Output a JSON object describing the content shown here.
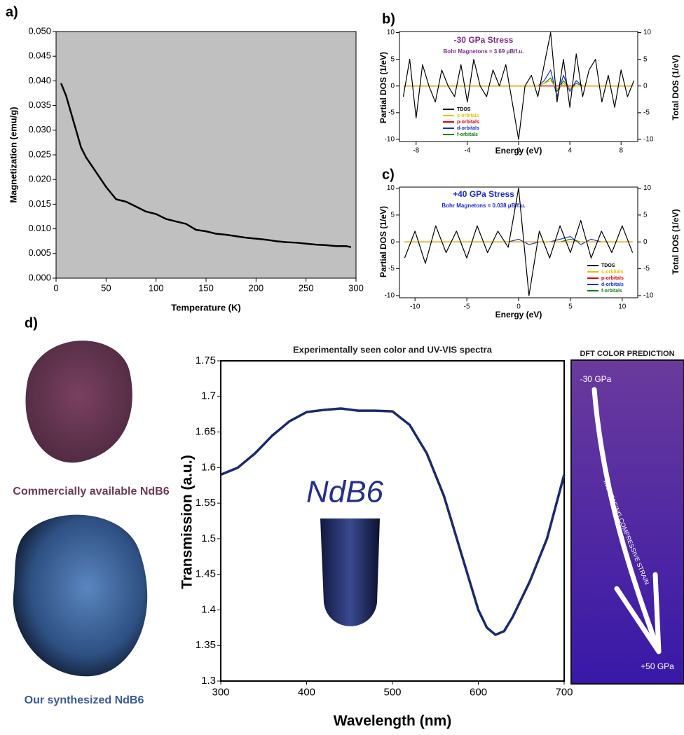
{
  "chart_data": [
    {
      "type": "line",
      "panel_label": "a)",
      "x_label": "Temperature (K)",
      "y_label": "Magnetization (emu/g)",
      "background": "#c0c0c0",
      "color": "#000000",
      "x": [
        5,
        10,
        15,
        20,
        25,
        30,
        40,
        50,
        60,
        70,
        80,
        90,
        100,
        110,
        120,
        130,
        140,
        150,
        160,
        170,
        180,
        190,
        200,
        210,
        220,
        230,
        240,
        250,
        260,
        270,
        280,
        290,
        295
      ],
      "values": [
        0.0395,
        0.037,
        0.0335,
        0.03,
        0.0265,
        0.0245,
        0.0215,
        0.0185,
        0.016,
        0.0155,
        0.0145,
        0.0135,
        0.013,
        0.012,
        0.0115,
        0.011,
        0.0098,
        0.0095,
        0.009,
        0.0088,
        0.0085,
        0.0082,
        0.008,
        0.0078,
        0.0075,
        0.0073,
        0.0072,
        0.007,
        0.0068,
        0.0067,
        0.0065,
        0.0065,
        0.0063
      ],
      "xlim": [
        0,
        300
      ],
      "xticks": [
        0,
        50,
        100,
        150,
        200,
        250,
        300
      ],
      "ylim": [
        0,
        0.05
      ],
      "yticks": [
        {
          "value": 0,
          "label": "0.000"
        },
        {
          "value": 0.005,
          "label": "0.005"
        },
        {
          "value": 0.01,
          "label": "0.010"
        },
        {
          "value": 0.015,
          "label": "0.015"
        },
        {
          "value": 0.02,
          "label": "0.020"
        },
        {
          "value": 0.025,
          "label": "0.025"
        },
        {
          "value": 0.03,
          "label": "0.030"
        },
        {
          "value": 0.035,
          "label": "0.035"
        },
        {
          "value": 0.04,
          "label": "0.040"
        },
        {
          "value": 0.045,
          "label": "0.045"
        },
        {
          "value": 0.05,
          "label": "0.050"
        }
      ]
    },
    {
      "type": "line",
      "panel_label": "b)",
      "title": "-30 GPa Stress",
      "subtitle": "Bohr Magnetons = 3.69 μB/f.u.",
      "title_color": "#7a2a8a",
      "x_label": "Energy (eV)",
      "y_label": "Partial DOS (1/eV)",
      "y2_label": "Total DOS (1/eV)",
      "legend": "bottom-left",
      "x": [
        -9,
        -8.5,
        -8,
        -7.5,
        -7,
        -6.5,
        -6,
        -5.5,
        -5,
        -4.5,
        -4,
        -3.5,
        -3,
        -2.5,
        -2,
        -1.5,
        -1,
        -0.5,
        0,
        0.5,
        1,
        1.5,
        2,
        2.5,
        3,
        3.5,
        4,
        4.5,
        5,
        5.5,
        6,
        6.5,
        7,
        7.5,
        8,
        8.5,
        9
      ],
      "series": [
        {
          "name": "TDOS",
          "color": "#000000",
          "axis": "y2",
          "values": [
            -2,
            5,
            -6,
            4,
            0,
            -3,
            3,
            0,
            -2,
            4,
            -3,
            5,
            0,
            -2,
            3,
            0,
            4,
            -3,
            -10,
            0,
            2,
            -2,
            4,
            10,
            -3,
            5,
            -4,
            6,
            -2,
            3,
            5,
            -3,
            2,
            -4,
            3,
            -2,
            1
          ]
        },
        {
          "name": "s-orbitals",
          "color": "#e8c000",
          "values": [
            0,
            0,
            0,
            0,
            0,
            0,
            0,
            0,
            0,
            0,
            0,
            0,
            0,
            0,
            0,
            0,
            0,
            0,
            0,
            0,
            0,
            0,
            0.5,
            1,
            -0.5,
            0.5,
            -0.5,
            0,
            0,
            0,
            0,
            0,
            0,
            0,
            0,
            0,
            0
          ]
        },
        {
          "name": "p-orbitals",
          "color": "#e00000",
          "values": [
            0,
            0,
            0,
            0,
            0,
            0,
            0,
            0,
            0,
            0,
            0,
            0,
            0,
            0,
            0,
            0,
            0,
            0,
            0,
            0,
            0,
            0,
            0,
            0,
            0,
            0,
            0,
            0,
            0,
            0,
            0,
            0,
            0,
            0,
            0,
            0,
            0
          ]
        },
        {
          "name": "d-orbitals",
          "color": "#1030e0",
          "values": [
            0,
            0,
            0,
            0,
            0,
            0,
            0,
            0,
            0,
            0,
            0,
            0,
            0,
            0,
            0,
            0,
            0,
            0,
            0,
            0,
            0,
            0,
            1,
            3,
            -2,
            2,
            -1,
            1,
            0,
            0,
            0,
            0,
            0,
            0,
            0,
            0,
            0
          ]
        },
        {
          "name": "f-orbitals",
          "color": "#108010",
          "values": [
            0,
            0,
            0,
            0,
            0,
            0,
            0,
            0,
            0,
            0,
            0,
            0,
            0,
            0,
            0,
            0,
            0,
            0,
            0,
            0,
            0,
            0,
            0.5,
            1.5,
            -1,
            1,
            -0.5,
            0.5,
            0,
            0,
            0,
            0,
            0,
            0,
            0,
            0,
            0
          ]
        }
      ],
      "xlim": [
        -9.3,
        9.3
      ],
      "xticks": [
        -8,
        -4,
        0,
        4,
        8
      ],
      "ylim": [
        -10.4,
        10.2
      ],
      "yticks": [
        -10,
        -5,
        0,
        5,
        10
      ],
      "y2lim": [
        -10.4,
        10.2
      ],
      "y2ticks": [
        -10,
        -5,
        0,
        5,
        10
      ]
    },
    {
      "type": "line",
      "panel_label": "c)",
      "title": "+40 GPa Stress",
      "subtitle": "Bohr Magnetons = 0.038 μB/f.u.",
      "title_color": "#1a2ad0",
      "x_label": "Energy (eV)",
      "y_label": "Partial DOS (1/eV)",
      "y2_label": "Total DOS (1/eV)",
      "legend": "bottom-right",
      "x": [
        -11,
        -10,
        -9,
        -8,
        -7,
        -6,
        -5,
        -4,
        -3,
        -2,
        -1,
        0,
        1,
        2,
        3,
        4,
        5,
        6,
        7,
        8,
        9,
        10,
        11
      ],
      "series": [
        {
          "name": "TDOS",
          "color": "#000000",
          "axis": "y2",
          "values": [
            -3,
            2,
            -4,
            3,
            -2,
            2,
            -3,
            3,
            -2,
            2,
            -1,
            10,
            -10,
            2,
            -3,
            3,
            -2,
            4,
            -3,
            2,
            -2,
            3,
            -2
          ]
        },
        {
          "name": "s-orbitals",
          "color": "#e8c000",
          "values": [
            0,
            0,
            0,
            0,
            0,
            0,
            0,
            0,
            0,
            0,
            0,
            0,
            0,
            0,
            0,
            0,
            0,
            0,
            0,
            0,
            0,
            0,
            0
          ]
        },
        {
          "name": "p-orbitals",
          "color": "#e00000",
          "values": [
            0,
            0,
            0,
            0,
            0,
            0,
            0,
            0,
            0,
            0,
            0,
            0,
            0,
            0,
            0,
            0,
            0,
            0,
            0,
            0,
            0,
            0,
            0
          ]
        },
        {
          "name": "d-orbitals",
          "color": "#1030e0",
          "values": [
            0,
            0,
            0,
            0,
            0,
            0,
            0,
            0,
            0,
            0,
            0,
            0.5,
            -0.5,
            0,
            0,
            0.5,
            1,
            -0.5,
            0.5,
            0,
            0,
            0,
            0
          ]
        },
        {
          "name": "f-orbitals",
          "color": "#108010",
          "values": [
            0,
            0,
            0,
            0,
            0,
            0,
            0,
            0,
            0,
            0,
            0,
            0,
            0,
            0,
            0,
            0,
            0.5,
            0,
            0,
            0,
            0,
            0,
            0
          ]
        }
      ],
      "xlim": [
        -11.5,
        11.5
      ],
      "xticks": [
        -10,
        -5,
        0,
        5,
        10
      ],
      "ylim": [
        -10.4,
        10.2
      ],
      "yticks": [
        -10,
        -5,
        0,
        5,
        10
      ],
      "y2lim": [
        -10.4,
        10.2
      ],
      "y2ticks": [
        -10,
        -5,
        0,
        5,
        10
      ]
    },
    {
      "type": "line",
      "panel_label": "d)",
      "title": "Experimentally seen color and UV-VIS spectra",
      "x_label": "Wavelength (nm)",
      "y_label": "Transmission (a.u.)",
      "color": "#1a2a6c",
      "x": [
        300,
        320,
        340,
        360,
        380,
        400,
        420,
        440,
        460,
        480,
        500,
        520,
        540,
        560,
        580,
        600,
        610,
        620,
        630,
        640,
        660,
        680,
        700
      ],
      "values": [
        1.59,
        1.6,
        1.62,
        1.645,
        1.665,
        1.678,
        1.681,
        1.683,
        1.68,
        1.68,
        1.679,
        1.66,
        1.62,
        1.56,
        1.48,
        1.4,
        1.375,
        1.365,
        1.37,
        1.39,
        1.44,
        1.5,
        1.59
      ],
      "xlim": [
        300,
        700
      ],
      "xticks": [
        300,
        400,
        500,
        600,
        700
      ],
      "ylim": [
        1.3,
        1.75
      ],
      "yticks": [
        1.3,
        1.35,
        1.4,
        1.45,
        1.5,
        1.55,
        1.6,
        1.65,
        1.7,
        1.75
      ]
    }
  ],
  "images": {
    "commercial": "Commercially available NdB6",
    "synthesized": "Our synthesized NdB6",
    "vial": "NdB6"
  },
  "dft_prediction": {
    "title": "DFT COLOR PREDICTION",
    "start": "-30 GPa",
    "end": "+50 GPa",
    "arrow_label": "INCREASING COMPRESSIVE STRAIN"
  }
}
